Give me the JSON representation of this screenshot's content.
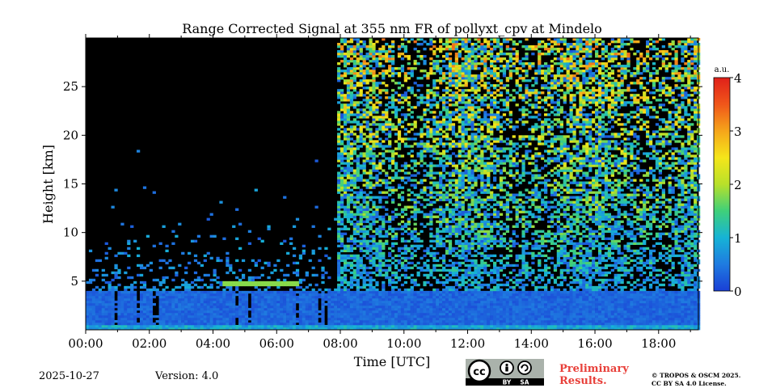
{
  "chart_data": {
    "type": "heatmap",
    "title": "Range Corrected Signal at 355 nm FR of pollyxt_cpv at Mindelo",
    "xlabel": "Time [UTC]",
    "ylabel": "Height [km]",
    "x_ticks": [
      "00:00",
      "02:00",
      "04:00",
      "06:00",
      "08:00",
      "10:00",
      "12:00",
      "14:00",
      "16:00",
      "18:00"
    ],
    "x_tick_hours": [
      0,
      2,
      4,
      6,
      8,
      10,
      12,
      14,
      16,
      18
    ],
    "xlim_hours": [
      0,
      19.25
    ],
    "y_ticks": [
      5,
      10,
      15,
      20,
      25
    ],
    "ylim": [
      0,
      30
    ],
    "colorbar": {
      "label": "a.u.",
      "ticks": [
        "0",
        "1",
        "2",
        "3",
        "4"
      ],
      "range": [
        0,
        4
      ],
      "colormap": [
        "#1a3fd6",
        "#1f7be0",
        "#16b3d6",
        "#3fd07a",
        "#b8e02a",
        "#f5e61a",
        "#f5a51a",
        "#f0561a",
        "#e0201a"
      ]
    },
    "features": {
      "boundary_layer_top_km": 4.0,
      "surface_layer_km": 0.5,
      "low_signal_until_hour": 7.8,
      "thin_layer": {
        "start_hour": 4.3,
        "end_hour": 6.6,
        "height_km": 4.6
      }
    }
  },
  "footer": {
    "date": "2025-10-27",
    "version": "Version: 4.0",
    "preliminary": [
      "Preliminary",
      "Results."
    ],
    "copyright": [
      "© TROPOS & OSCM 2025.",
      "CC BY SA 4.0 License."
    ],
    "license_badge": {
      "cc": "cc",
      "by": "BY",
      "sa": "SA"
    }
  }
}
